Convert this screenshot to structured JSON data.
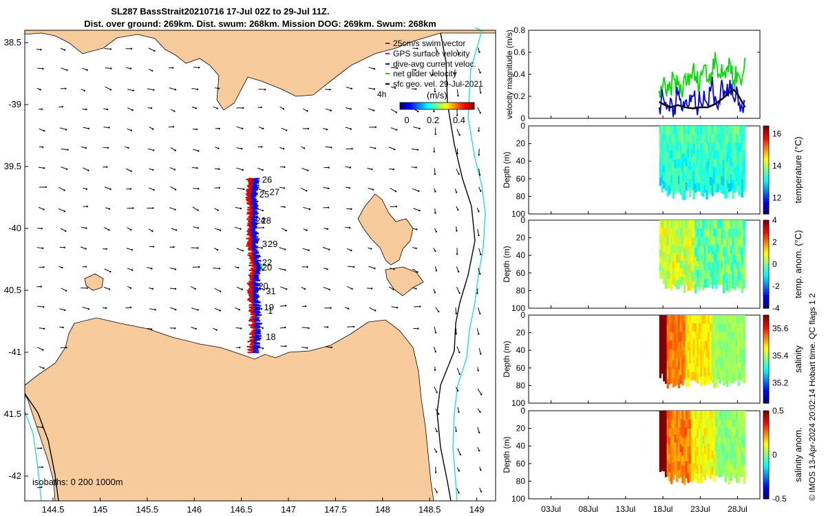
{
  "title": {
    "line1": "SL287 BassStrait20210716 17-Jul 02Z to 29-Jul 11Z.",
    "line2": "Dist. over ground: 269km. Dist. swum: 268km. Mission DOG: 269km. Swum: 268km"
  },
  "map": {
    "lon_ticks": [
      "144.5",
      "145",
      "145.5",
      "146",
      "146.5",
      "147",
      "147.5",
      "148",
      "148.5",
      "149"
    ],
    "lat_ticks": [
      "38.5",
      "-39",
      "39.5",
      "-40",
      "40.5",
      "-41",
      "41.5",
      "-42"
    ],
    "xlim": [
      144.2,
      149.2
    ],
    "ylim": [
      -42.2,
      -38.4
    ],
    "isobaths_label": "isobaths: 0   200  1000m",
    "legend": [
      {
        "label": "25cm/s swim vector",
        "color": "#e00000"
      },
      {
        "label": "GPS surface velocity",
        "color": "#cc00cc"
      },
      {
        "label": "dive-avg current veloc.",
        "color": "#0000ee"
      },
      {
        "label": "net glider velocity",
        "color": "#00dd00"
      },
      {
        "label": "sfc geo. vel. 29-Jul-2021",
        "color": "#000000"
      }
    ],
    "scale_label": "4h",
    "colorbar_unit": "(m/s)",
    "colorbar_ticks": [
      "0",
      "0.2",
      "0.4"
    ],
    "track_day_labels": [
      {
        "text": "26",
        "lon": 146.72,
        "lat": -39.63
      },
      {
        "text": "27",
        "lon": 146.8,
        "lat": -39.73
      },
      {
        "text": "25",
        "lon": 146.69,
        "lat": -39.75
      },
      {
        "text": "24",
        "lon": 146.65,
        "lat": -39.96
      },
      {
        "text": "28",
        "lon": 146.71,
        "lat": -39.96
      },
      {
        "text": "3",
        "lon": 146.72,
        "lat": -40.15
      },
      {
        "text": "29",
        "lon": 146.78,
        "lat": -40.15
      },
      {
        "text": "22",
        "lon": 146.72,
        "lat": -40.3
      },
      {
        "text": "20",
        "lon": 146.72,
        "lat": -40.34
      },
      {
        "text": "20",
        "lon": 146.68,
        "lat": -40.49
      },
      {
        "text": "31",
        "lon": 146.76,
        "lat": -40.53
      },
      {
        "text": "19",
        "lon": 146.74,
        "lat": -40.66
      },
      {
        "text": "1",
        "lon": 146.78,
        "lat": -40.69
      },
      {
        "text": "18",
        "lon": 146.76,
        "lat": -40.9
      }
    ]
  },
  "chart_data": [
    {
      "type": "line",
      "ylabel": "velocity magnitude (m/s)",
      "ylim": [
        0,
        0.8
      ],
      "yticks": [
        "0",
        "0.2",
        "0.4",
        "0.6",
        "0.8"
      ],
      "x_range_days": [
        "2021-06-28",
        "2021-07-31"
      ],
      "series": [
        {
          "color": "#00dd00",
          "x": [
            17.5,
            18,
            18.5,
            19,
            19.5,
            20,
            20.5,
            21,
            21.5,
            22,
            22.5,
            23,
            23.5,
            24,
            24.5,
            25,
            25.5,
            26,
            26.5,
            27,
            27.5,
            28,
            28.5,
            29
          ],
          "y": [
            0.25,
            0.3,
            0.2,
            0.28,
            0.35,
            0.3,
            0.22,
            0.4,
            0.3,
            0.45,
            0.32,
            0.38,
            0.48,
            0.35,
            0.42,
            0.6,
            0.4,
            0.38,
            0.45,
            0.5,
            0.35,
            0.42,
            0.3,
            0.55
          ]
        },
        {
          "color": "#0000ee",
          "x": [
            17.5,
            18,
            18.5,
            19,
            19.5,
            20,
            20.5,
            21,
            21.5,
            22,
            22.5,
            23,
            23.5,
            24,
            24.5,
            25,
            25.5,
            26,
            26.5,
            27,
            27.5,
            28,
            28.5,
            29
          ],
          "y": [
            0.1,
            0.2,
            0.08,
            0.18,
            0.1,
            0.22,
            0.08,
            0.16,
            0.12,
            0.2,
            0.1,
            0.15,
            0.25,
            0.12,
            0.3,
            0.2,
            0.15,
            0.3,
            0.2,
            0.35,
            0.18,
            0.25,
            0.12,
            0.15
          ]
        },
        {
          "color": "#000000",
          "x": [
            17.5,
            18,
            19,
            20,
            21,
            22,
            23,
            24,
            25,
            26,
            27,
            27.5,
            28,
            29
          ],
          "y": [
            0.15,
            0.13,
            0.1,
            0.12,
            0.1,
            0.09,
            0.1,
            0.1,
            0.13,
            0.18,
            0.24,
            0.26,
            0.22,
            0.1
          ]
        }
      ]
    },
    {
      "type": "heatmap",
      "ylabel": "Depth (m)",
      "colorbar_label": "temperature (°C)",
      "colorbar_ticks": [
        "12",
        "14",
        "16"
      ],
      "clim": [
        11,
        16.5
      ],
      "yticks": [
        "0",
        "20",
        "40",
        "60",
        "80",
        "100"
      ],
      "x_start": 17.5,
      "x_end": 29,
      "value_mean": 13.5
    },
    {
      "type": "heatmap",
      "ylabel": "Depth (m)",
      "colorbar_label": "temp. anom. (°C)",
      "colorbar_ticks": [
        "-4",
        "-2",
        "0",
        "2",
        "4"
      ],
      "clim": [
        -4,
        4
      ],
      "yticks": [
        "0",
        "20",
        "40",
        "60",
        "80",
        "100"
      ],
      "x_start": 17.5,
      "x_end": 29,
      "value_mean": 0
    },
    {
      "type": "heatmap",
      "ylabel": "Depth (m)",
      "colorbar_label": "salinity",
      "colorbar_ticks": [
        "35.2",
        "35.4",
        "35.6"
      ],
      "clim": [
        35.05,
        35.7
      ],
      "yticks": [
        "0",
        "20",
        "40",
        "60",
        "80",
        "100"
      ],
      "x_start": 17.5,
      "x_end": 29,
      "value_mean": 35.5
    },
    {
      "type": "heatmap",
      "ylabel": "Depth (m)",
      "colorbar_label": "salinity anom.",
      "colorbar_ticks": [
        "-0.5",
        "0",
        "0.5"
      ],
      "clim": [
        -0.5,
        0.5
      ],
      "yticks": [
        "0",
        "20",
        "40",
        "60",
        "80",
        "100"
      ],
      "x_start": 17.5,
      "x_end": 29,
      "value_mean": 0.15
    }
  ],
  "time_axis": {
    "ticks": [
      {
        "label": "03Jul",
        "day": 3
      },
      {
        "label": "08Jul",
        "day": 8
      },
      {
        "label": "13Jul",
        "day": 13
      },
      {
        "label": "18Jul",
        "day": 18
      },
      {
        "label": "23Jul",
        "day": 23
      },
      {
        "label": "28Jul",
        "day": 28
      }
    ]
  },
  "credit": "© IMOS 13-Apr-2024 20:02:14 Hobart time. QC flags 1  2"
}
